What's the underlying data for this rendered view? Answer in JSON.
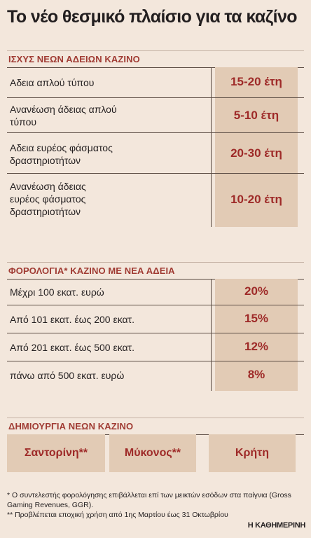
{
  "title": "Το νέο θεσμικό πλαίσιο για τα καζίνο",
  "license_duration": {
    "heading": "ΙΣΧΥΣ ΝΕΩΝ ΑΔΕΙΩΝ ΚΑΖΙΝΟ",
    "rows": [
      {
        "label": "Αδεια απλού τύπου",
        "value": "15-20 έτη"
      },
      {
        "label": "Ανανέωση άδειας απλού τύπου",
        "value": "5-10 έτη"
      },
      {
        "label": "Αδεια ευρέος φάσματος δραστηριοτήτων",
        "value": "20-30 έτη"
      },
      {
        "label": "Ανανέωση άδειας ευρέος φάσματος δραστηριοτήτων",
        "value": "10-20 έτη"
      }
    ]
  },
  "taxation": {
    "heading": "ΦΟΡΟΛΟΓΙΑ* ΚΑΖΙΝΟ ΜΕ ΝΕΑ ΑΔΕΙΑ",
    "rows": [
      {
        "label": "Μέχρι 100 εκατ. ευρώ",
        "value": "20%"
      },
      {
        "label": "Από 101 εκατ. έως 200 εκατ.",
        "value": "15%"
      },
      {
        "label": "Από 201 εκατ. έως 500 εκατ.",
        "value": "12%"
      },
      {
        "label": "πάνω από 500 εκατ. ευρώ",
        "value": "8%"
      }
    ]
  },
  "new_casinos": {
    "heading": "ΔΗΜΙΟΥΡΓΙΑ ΝΕΩΝ ΚΑΖΙΝΟ",
    "locations": [
      "Σαντορίνη**",
      "Μύκονος**",
      "Κρήτη"
    ]
  },
  "footnotes": {
    "note1": "* Ο συντελεστής φορολόγησης επιβάλλεται επί των μεικτών εσόδων στα παίγνια (Gross Gaming Revenues, GGR).",
    "note2": "** Προβλέπεται εποχική χρήση από 1ης Μαρτίου έως 31 Οκτωβρίου"
  },
  "source": "Η ΚΑΘΗΜΕΡΙΝΗ",
  "colors": {
    "background": "#f3e7dc",
    "shade": "#e2cbb5",
    "accent": "#9e2a28",
    "heading": "#a03b33"
  }
}
